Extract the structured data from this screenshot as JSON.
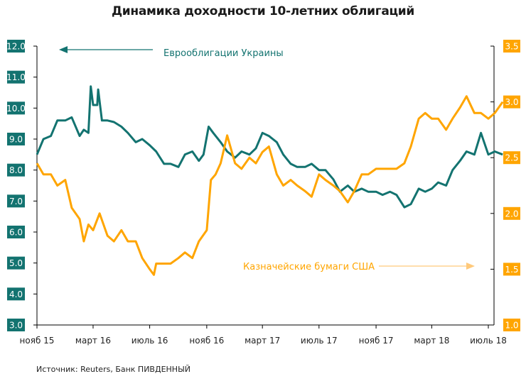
{
  "title": "Динамика доходности 10-летних облигаций",
  "source": "Источник: Reuters, Банк ПИВДЕННЫЙ",
  "colors": {
    "ukraine": "#137370",
    "usa": "#FFA500",
    "usa_arrow": "#FFC97A"
  },
  "chart_data": {
    "type": "line",
    "title": "Динамика доходности 10-летних облигаций",
    "x_ticks": [
      "нояб 15",
      "март 16",
      "июль 16",
      "нояб 16",
      "март 17",
      "июль 17",
      "нояб 17",
      "март 18",
      "июль 18"
    ],
    "x_tick_dates": [
      "2015-11-01",
      "2016-03-01",
      "2016-07-01",
      "2016-11-01",
      "2017-03-01",
      "2017-07-01",
      "2017-11-01",
      "2018-03-01",
      "2018-07-01"
    ],
    "x_range": [
      "2015-11-01",
      "2018-08-05"
    ],
    "y_left": {
      "range": [
        3.0,
        12.0
      ],
      "ticks": [
        "3.0",
        "4.0",
        "5.0",
        "6.0",
        "7.0",
        "8.0",
        "9.0",
        "10.0",
        "11.0",
        "12.0"
      ]
    },
    "y_right": {
      "range": [
        1.0,
        3.5
      ],
      "ticks": [
        "1.0",
        "1.5",
        "2.0",
        "2.5",
        "3.0",
        "3.5"
      ]
    },
    "grid": false,
    "series": [
      {
        "name": "Еврооблигации Украины",
        "axis": "left",
        "color": "#137370",
        "x": [
          "2015-11-01",
          "2015-11-15",
          "2015-12-01",
          "2015-12-15",
          "2016-01-01",
          "2016-01-15",
          "2016-02-01",
          "2016-02-10",
          "2016-02-20",
          "2016-02-25",
          "2016-03-01",
          "2016-03-10",
          "2016-03-12",
          "2016-03-20",
          "2016-04-01",
          "2016-04-15",
          "2016-05-01",
          "2016-05-15",
          "2016-06-01",
          "2016-06-15",
          "2016-07-01",
          "2016-07-15",
          "2016-08-01",
          "2016-08-15",
          "2016-09-01",
          "2016-09-15",
          "2016-10-01",
          "2016-10-15",
          "2016-10-25",
          "2016-11-05",
          "2016-11-15",
          "2016-12-01",
          "2016-12-15",
          "2017-01-01",
          "2017-01-15",
          "2017-02-01",
          "2017-02-15",
          "2017-03-01",
          "2017-03-15",
          "2017-04-01",
          "2017-04-15",
          "2017-05-01",
          "2017-05-15",
          "2017-06-01",
          "2017-06-15",
          "2017-07-01",
          "2017-07-15",
          "2017-08-01",
          "2017-08-15",
          "2017-09-01",
          "2017-09-15",
          "2017-10-01",
          "2017-10-15",
          "2017-11-01",
          "2017-11-15",
          "2017-12-01",
          "2017-12-15",
          "2018-01-01",
          "2018-01-15",
          "2018-02-01",
          "2018-02-15",
          "2018-03-01",
          "2018-03-15",
          "2018-04-01",
          "2018-04-15",
          "2018-05-01",
          "2018-05-15",
          "2018-06-01",
          "2018-06-15",
          "2018-07-01",
          "2018-07-15",
          "2018-08-01"
        ],
        "values": [
          8.5,
          9.0,
          9.1,
          9.6,
          9.6,
          9.7,
          9.1,
          9.3,
          9.2,
          10.7,
          10.1,
          10.1,
          10.6,
          9.6,
          9.6,
          9.55,
          9.4,
          9.2,
          8.9,
          9.0,
          8.8,
          8.6,
          8.2,
          8.2,
          8.1,
          8.5,
          8.6,
          8.3,
          8.5,
          9.4,
          9.2,
          8.9,
          8.6,
          8.4,
          8.6,
          8.5,
          8.7,
          9.2,
          9.1,
          8.9,
          8.5,
          8.2,
          8.1,
          8.1,
          8.2,
          8.0,
          8.0,
          7.7,
          7.3,
          7.5,
          7.3,
          7.4,
          7.3,
          7.3,
          7.2,
          7.3,
          7.2,
          6.8,
          6.9,
          7.4,
          7.3,
          7.4,
          7.6,
          7.5,
          8.0,
          8.3,
          8.6,
          8.5,
          9.2,
          8.5,
          8.6,
          8.5
        ]
      },
      {
        "name": "Казначейские бумаги США",
        "axis": "right",
        "color": "#FFA500",
        "x": [
          "2015-11-01",
          "2015-11-15",
          "2015-12-01",
          "2015-12-15",
          "2016-01-01",
          "2016-01-15",
          "2016-02-01",
          "2016-02-10",
          "2016-02-20",
          "2016-03-01",
          "2016-03-15",
          "2016-04-01",
          "2016-04-15",
          "2016-05-01",
          "2016-05-15",
          "2016-06-01",
          "2016-06-15",
          "2016-07-01",
          "2016-07-10",
          "2016-07-15",
          "2016-08-01",
          "2016-08-15",
          "2016-09-01",
          "2016-09-15",
          "2016-10-01",
          "2016-10-15",
          "2016-11-01",
          "2016-11-10",
          "2016-11-20",
          "2016-12-01",
          "2016-12-15",
          "2017-01-01",
          "2017-01-15",
          "2017-02-01",
          "2017-02-15",
          "2017-03-01",
          "2017-03-15",
          "2017-04-01",
          "2017-04-15",
          "2017-05-01",
          "2017-05-15",
          "2017-06-01",
          "2017-06-15",
          "2017-07-01",
          "2017-07-15",
          "2017-08-01",
          "2017-08-15",
          "2017-09-01",
          "2017-09-15",
          "2017-10-01",
          "2017-10-15",
          "2017-11-01",
          "2017-11-15",
          "2017-12-01",
          "2017-12-15",
          "2018-01-01",
          "2018-01-15",
          "2018-02-01",
          "2018-02-15",
          "2018-03-01",
          "2018-03-15",
          "2018-04-01",
          "2018-04-15",
          "2018-05-01",
          "2018-05-15",
          "2018-06-01",
          "2018-06-15",
          "2018-07-01",
          "2018-07-15",
          "2018-08-01"
        ],
        "values": [
          2.45,
          2.35,
          2.35,
          2.25,
          2.3,
          2.05,
          1.95,
          1.75,
          1.9,
          1.85,
          2.0,
          1.8,
          1.75,
          1.85,
          1.75,
          1.75,
          1.6,
          1.5,
          1.45,
          1.55,
          1.55,
          1.55,
          1.6,
          1.65,
          1.6,
          1.75,
          1.85,
          2.3,
          2.35,
          2.45,
          2.7,
          2.45,
          2.4,
          2.5,
          2.45,
          2.55,
          2.6,
          2.35,
          2.25,
          2.3,
          2.25,
          2.2,
          2.15,
          2.35,
          2.3,
          2.25,
          2.2,
          2.1,
          2.2,
          2.35,
          2.35,
          2.4,
          2.4,
          2.4,
          2.4,
          2.45,
          2.6,
          2.85,
          2.9,
          2.85,
          2.85,
          2.75,
          2.85,
          2.95,
          3.05,
          2.9,
          2.9,
          2.85,
          2.9,
          3.0
        ]
      }
    ]
  }
}
